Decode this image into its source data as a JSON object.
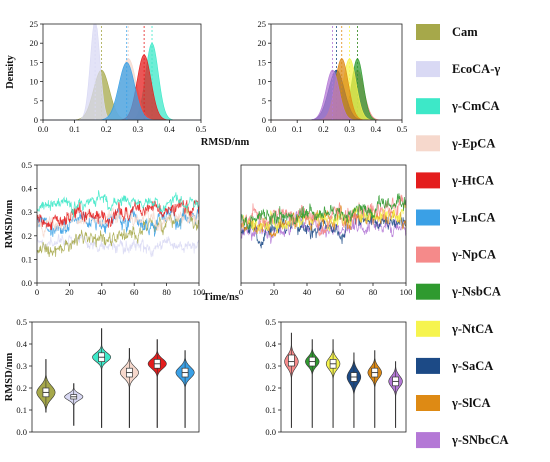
{
  "legend": [
    {
      "label": "Cam",
      "color": "#a6a84a"
    },
    {
      "label": "EcoCA-γ",
      "color": "#d9d9f4"
    },
    {
      "label": "γ-CmCA",
      "color": "#3de8c8"
    },
    {
      "label": "γ-EpCA",
      "color": "#f6d8cc"
    },
    {
      "label": "γ-HtCA",
      "color": "#e41d1d"
    },
    {
      "label": "γ-LnCA",
      "color": "#3aa0e6"
    },
    {
      "label": "γ-NpCA",
      "color": "#f58a8a"
    },
    {
      "label": "γ-NsbCA",
      "color": "#2f9a2f"
    },
    {
      "label": "γ-NtCA",
      "color": "#f6f44e"
    },
    {
      "label": "γ-SaCA",
      "color": "#1c4a86"
    },
    {
      "label": "γ-SlCA",
      "color": "#de8a14"
    },
    {
      "label": "γ-SNbcCA",
      "color": "#b478d6"
    }
  ],
  "chart_data": [
    {
      "type": "area",
      "panel": "density-left",
      "ylabel": "Density",
      "xlabel": "RMSD/nm",
      "xlim": [
        0.0,
        0.5
      ],
      "ylim": [
        0,
        25
      ],
      "xticks": [
        "0.0",
        "0.1",
        "0.2",
        "0.3",
        "0.4",
        "0.5"
      ],
      "yticks": [
        "0",
        "5",
        "10",
        "15",
        "20",
        "25"
      ],
      "series": [
        {
          "name": "Cam",
          "mean": 0.185,
          "sd": 0.025,
          "peak": 13
        },
        {
          "name": "EcoCA-γ",
          "mean": 0.165,
          "sd": 0.015,
          "peak": 26
        },
        {
          "name": "γ-CmCA",
          "mean": 0.345,
          "sd": 0.02,
          "peak": 20
        },
        {
          "name": "γ-EpCA",
          "mean": 0.27,
          "sd": 0.025,
          "peak": 16
        },
        {
          "name": "γ-HtCA",
          "mean": 0.32,
          "sd": 0.022,
          "peak": 17
        },
        {
          "name": "γ-LnCA",
          "mean": 0.265,
          "sd": 0.025,
          "peak": 15
        }
      ]
    },
    {
      "type": "area",
      "panel": "density-right",
      "xlim": [
        0.0,
        0.5
      ],
      "ylim": [
        0,
        25
      ],
      "xticks": [
        "0.0",
        "0.1",
        "0.2",
        "0.3",
        "0.4",
        "0.5"
      ],
      "yticks": [
        "0",
        "5",
        "10",
        "15",
        "20",
        "25"
      ],
      "series": [
        {
          "name": "γ-NpCA",
          "mean": 0.33,
          "sd": 0.025,
          "peak": 13
        },
        {
          "name": "γ-NsbCA",
          "mean": 0.33,
          "sd": 0.022,
          "peak": 16
        },
        {
          "name": "γ-NtCA",
          "mean": 0.3,
          "sd": 0.025,
          "peak": 16
        },
        {
          "name": "γ-SaCA",
          "mean": 0.25,
          "sd": 0.03,
          "peak": 13
        },
        {
          "name": "γ-SlCA",
          "mean": 0.27,
          "sd": 0.025,
          "peak": 16
        },
        {
          "name": "γ-SNbcCA",
          "mean": 0.235,
          "sd": 0.025,
          "peak": 13
        }
      ]
    },
    {
      "type": "line",
      "panel": "timeseries-left",
      "ylabel": "RMSD/nm",
      "xlabel": "Time/ns",
      "xlim": [
        0,
        100
      ],
      "ylim": [
        0.0,
        0.5
      ],
      "xticks": [
        "0",
        "20",
        "40",
        "60",
        "80",
        "100"
      ],
      "yticks": [
        "0.0",
        "0.1",
        "0.2",
        "0.3",
        "0.4",
        "0.5"
      ],
      "series": [
        {
          "name": "EcoCA-γ",
          "start": 0.17,
          "end": 0.16,
          "noise": 0.02
        },
        {
          "name": "Cam",
          "start": 0.14,
          "end": 0.27,
          "noise": 0.025
        },
        {
          "name": "γ-LnCA",
          "start": 0.24,
          "end": 0.28,
          "noise": 0.025
        },
        {
          "name": "γ-EpCA",
          "start": 0.25,
          "end": 0.3,
          "noise": 0.025
        },
        {
          "name": "γ-HtCA",
          "start": 0.27,
          "end": 0.33,
          "noise": 0.025
        },
        {
          "name": "γ-CmCA",
          "start": 0.32,
          "end": 0.34,
          "noise": 0.02
        }
      ]
    },
    {
      "type": "line",
      "panel": "timeseries-right",
      "xlim": [
        0,
        100
      ],
      "ylim": [
        0.0,
        0.5
      ],
      "xticks": [
        "0",
        "20",
        "40",
        "60",
        "80",
        "100"
      ],
      "yticks": [
        "0.0",
        "0.1",
        "0.2",
        "0.3",
        "0.4",
        "0.5"
      ],
      "series": [
        {
          "name": "γ-SNbcCA",
          "start": 0.21,
          "end": 0.24,
          "noise": 0.025
        },
        {
          "name": "γ-SaCA",
          "start": 0.22,
          "end": 0.26,
          "noise": 0.025
        },
        {
          "name": "γ-SlCA",
          "start": 0.24,
          "end": 0.28,
          "noise": 0.025
        },
        {
          "name": "γ-NtCA",
          "start": 0.25,
          "end": 0.3,
          "noise": 0.025
        },
        {
          "name": "γ-NpCA",
          "start": 0.26,
          "end": 0.32,
          "noise": 0.03
        },
        {
          "name": "γ-NsbCA",
          "start": 0.26,
          "end": 0.33,
          "noise": 0.025
        }
      ]
    },
    {
      "type": "violin",
      "panel": "violin-left",
      "ylabel": "RMSD/nm",
      "ylim": [
        0.0,
        0.5
      ],
      "yticks": [
        "0.0",
        "0.1",
        "0.2",
        "0.3",
        "0.4",
        "0.5"
      ],
      "series": [
        {
          "name": "Cam",
          "median": 0.18,
          "q1": 0.16,
          "q3": 0.2,
          "min": 0.09,
          "max": 0.33,
          "sd": 0.03
        },
        {
          "name": "EcoCA-γ",
          "median": 0.16,
          "q1": 0.15,
          "q3": 0.17,
          "min": 0.03,
          "max": 0.22,
          "sd": 0.015
        },
        {
          "name": "γ-CmCA",
          "median": 0.34,
          "q1": 0.32,
          "q3": 0.36,
          "min": 0.02,
          "max": 0.47,
          "sd": 0.02
        },
        {
          "name": "γ-EpCA",
          "median": 0.27,
          "q1": 0.25,
          "q3": 0.29,
          "min": 0.02,
          "max": 0.38,
          "sd": 0.025
        },
        {
          "name": "γ-HtCA",
          "median": 0.31,
          "q1": 0.29,
          "q3": 0.33,
          "min": 0.02,
          "max": 0.42,
          "sd": 0.022
        },
        {
          "name": "γ-LnCA",
          "median": 0.27,
          "q1": 0.25,
          "q3": 0.29,
          "min": 0.02,
          "max": 0.37,
          "sd": 0.025
        }
      ]
    },
    {
      "type": "violin",
      "panel": "violin-right",
      "ylim": [
        0.0,
        0.5
      ],
      "yticks": [
        "0.0",
        "0.1",
        "0.2",
        "0.3",
        "0.4",
        "0.5"
      ],
      "series": [
        {
          "name": "γ-NpCA",
          "median": 0.32,
          "q1": 0.3,
          "q3": 0.35,
          "min": 0.02,
          "max": 0.45,
          "sd": 0.028
        },
        {
          "name": "γ-NsbCA",
          "median": 0.32,
          "q1": 0.3,
          "q3": 0.34,
          "min": 0.02,
          "max": 0.42,
          "sd": 0.022
        },
        {
          "name": "γ-NtCA",
          "median": 0.31,
          "q1": 0.29,
          "q3": 0.33,
          "min": 0.02,
          "max": 0.42,
          "sd": 0.025
        },
        {
          "name": "γ-SaCA",
          "median": 0.25,
          "q1": 0.23,
          "q3": 0.27,
          "min": 0.02,
          "max": 0.36,
          "sd": 0.03
        },
        {
          "name": "γ-SlCA",
          "median": 0.27,
          "q1": 0.25,
          "q3": 0.29,
          "min": 0.02,
          "max": 0.37,
          "sd": 0.025
        },
        {
          "name": "γ-SNbcCA",
          "median": 0.23,
          "q1": 0.21,
          "q3": 0.25,
          "min": 0.02,
          "max": 0.32,
          "sd": 0.025
        }
      ]
    }
  ]
}
